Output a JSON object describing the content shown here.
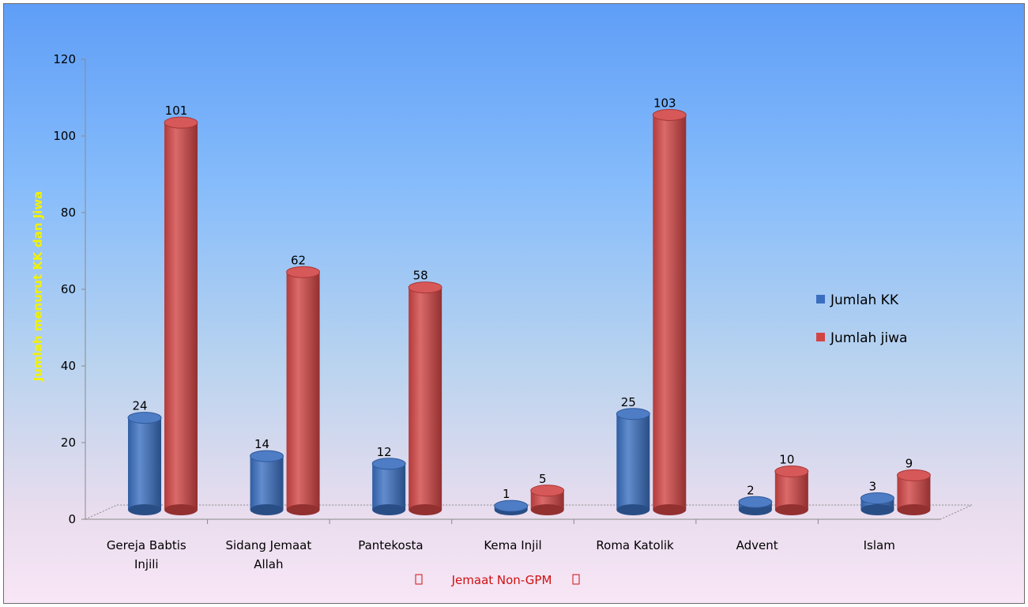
{
  "chart_data": {
    "type": "bar",
    "categories": [
      "Gereja Babtis Injili",
      "Sidang Jemaat Allah",
      "Pantekosta",
      "Kema Injil",
      "Roma Katolik",
      "Advent",
      "Islam"
    ],
    "series": [
      {
        "name": "Jumlah KK",
        "values": [
          24,
          14,
          12,
          1,
          25,
          2,
          3
        ],
        "color": "#3a6fc0"
      },
      {
        "name": "Jumlah jiwa",
        "values": [
          101,
          62,
          58,
          5,
          103,
          10,
          9
        ],
        "color": "#d24545"
      }
    ],
    "xlabel": "Jemaat Non-GPM",
    "xlabel_markers": [
      "",
      ""
    ],
    "ylabel": "Jumlah menurut KK dan Jiwa",
    "ylabel_color": "#f2f200",
    "xlabel_color": "#d01010",
    "ylim": [
      0,
      120
    ],
    "yticks": [
      0,
      20,
      40,
      60,
      80,
      100,
      120
    ],
    "category_label_lines": [
      [
        "Gereja Babtis",
        "Injili"
      ],
      [
        "Sidang Jemaat",
        "Allah"
      ],
      [
        "Pantekosta"
      ],
      [
        "Kema Injil"
      ],
      [
        "Roma Katolik"
      ],
      [
        "Advent"
      ],
      [
        "Islam"
      ]
    ],
    "legend_position": "right",
    "grid": false
  }
}
